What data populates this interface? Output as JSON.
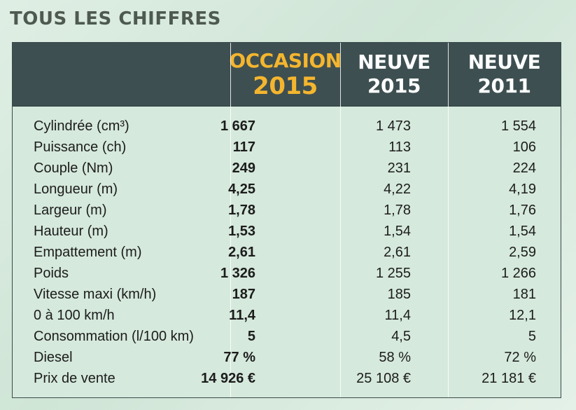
{
  "title": "TOUS LES CHIFFRES",
  "header": {
    "occasion_line1": "OCCASION",
    "occasion_line2": "2015",
    "neuve2015_line1": "NEUVE",
    "neuve2015_line2": "2015",
    "neuve2011_line1": "NEUVE",
    "neuve2011_line2": "2011"
  },
  "rows": [
    {
      "label": "Cylindrée (cm³)",
      "occasion": "1 667",
      "neuve2015": "1 473",
      "neuve2011": "1 554"
    },
    {
      "label": "Puissance (ch)",
      "occasion": "117",
      "neuve2015": "113",
      "neuve2011": "106"
    },
    {
      "label": "Couple (Nm)",
      "occasion": "249",
      "neuve2015": "231",
      "neuve2011": "224"
    },
    {
      "label": "Longueur (m)",
      "occasion": "4,25",
      "neuve2015": "4,22",
      "neuve2011": "4,19"
    },
    {
      "label": "Largeur (m)",
      "occasion": "1,78",
      "neuve2015": "1,78",
      "neuve2011": "1,76"
    },
    {
      "label": "Hauteur (m)",
      "occasion": "1,53",
      "neuve2015": "1,54",
      "neuve2011": "1,54"
    },
    {
      "label": "Empattement (m)",
      "occasion": "2,61",
      "neuve2015": "2,61",
      "neuve2011": "2,59"
    },
    {
      "label": "Poids",
      "occasion": "1 326",
      "neuve2015": "1 255",
      "neuve2011": "1 266"
    },
    {
      "label": "Vitesse maxi (km/h)",
      "occasion": "187",
      "neuve2015": "185",
      "neuve2011": "181"
    },
    {
      "label": "0 à 100 km/h",
      "occasion": "11,4",
      "neuve2015": "11,4",
      "neuve2011": "12,1"
    },
    {
      "label": "Consommation (l/100 km)",
      "occasion": "5",
      "neuve2015": "4,5",
      "neuve2011": "5"
    },
    {
      "label": "Diesel",
      "occasion": "77 %",
      "neuve2015": "58 %",
      "neuve2011": "72 %"
    },
    {
      "label": "Prix de vente",
      "occasion": "14 926 €",
      "neuve2015": "25 108 €",
      "neuve2011": "21 181 €"
    }
  ],
  "colors": {
    "header_bg": "#3d4f51",
    "accent": "#f4b52e",
    "table_bg": "#d5e9dc"
  }
}
